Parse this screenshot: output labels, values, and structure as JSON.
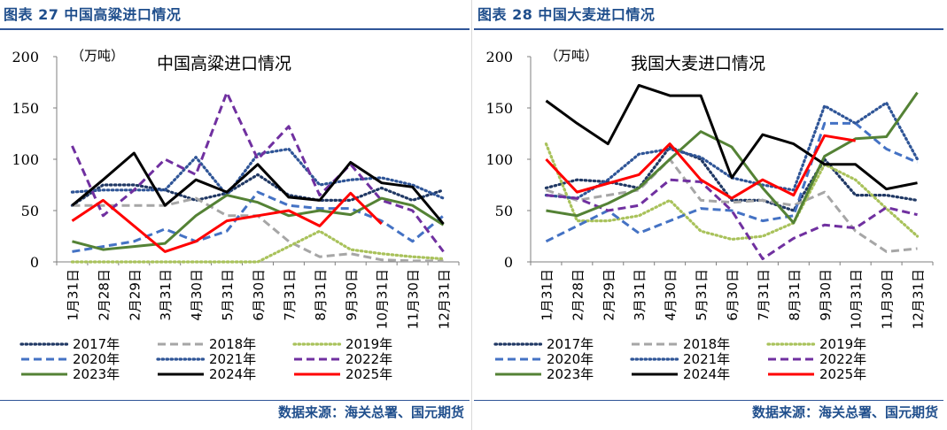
{
  "source_text": "数据来源：海关总署、国元期货",
  "months": [
    "1月31日",
    "2月28日",
    "2月29日",
    "3月31日",
    "4月30日",
    "5月31日",
    "6月30日",
    "7月31日",
    "8月31日",
    "9月30日",
    "10月31日",
    "11月30日",
    "12月31日"
  ],
  "series_styles": [
    {
      "name": "2017年",
      "color": "#203864",
      "dash": "dot"
    },
    {
      "name": "2018年",
      "color": "#a6a6a6",
      "dash": "dash"
    },
    {
      "name": "2019年",
      "color": "#a9c25b",
      "dash": "dot"
    },
    {
      "name": "2020年",
      "color": "#4472c4",
      "dash": "dash"
    },
    {
      "name": "2021年",
      "color": "#2f5597",
      "dash": "dot"
    },
    {
      "name": "2022年",
      "color": "#7030a0",
      "dash": "dash"
    },
    {
      "name": "2023年",
      "color": "#548235",
      "dash": "solid"
    },
    {
      "name": "2024年",
      "color": "#000000",
      "dash": "solid"
    },
    {
      "name": "2025年",
      "color": "#ff0000",
      "dash": "solid"
    }
  ],
  "panels": [
    {
      "figure_title": "图表 27  中国高粱进口情况",
      "chart_data": {
        "type": "line",
        "title": "中国高粱进口情况",
        "unit_label": "（万吨）",
        "ylim": [
          0,
          200
        ],
        "yticks": [
          0,
          50,
          100,
          150,
          200
        ],
        "categories": [
          "1月31日",
          "2月28日",
          "2月29日",
          "3月31日",
          "4月30日",
          "5月31日",
          "6月30日",
          "7月31日",
          "8月31日",
          "9月30日",
          "10月31日",
          "11月30日",
          "12月31日"
        ],
        "series": [
          {
            "name": "2017年",
            "values": [
              55,
              75,
              75,
              70,
              60,
              67,
              85,
              65,
              60,
              60,
              72,
              60,
              70
            ]
          },
          {
            "name": "2018年",
            "values": [
              55,
              55,
              55,
              55,
              62,
              45,
              45,
              20,
              5,
              8,
              2,
              1,
              1
            ]
          },
          {
            "name": "2019年",
            "values": [
              0,
              0,
              0,
              0,
              0,
              0,
              0,
              15,
              30,
              12,
              8,
              5,
              3
            ]
          },
          {
            "name": "2020年",
            "values": [
              10,
              15,
              20,
              32,
              20,
              30,
              68,
              55,
              52,
              52,
              40,
              20,
              45
            ]
          },
          {
            "name": "2021年",
            "values": [
              68,
              70,
              70,
              70,
              102,
              65,
              105,
              110,
              75,
              80,
              82,
              75,
              62
            ]
          },
          {
            "name": "2022年",
            "values": [
              113,
              45,
              70,
              100,
              85,
              165,
              100,
              132,
              65,
              95,
              60,
              50,
              10
            ]
          },
          {
            "name": "2023年",
            "values": [
              20,
              12,
              15,
              18,
              45,
              65,
              58,
              45,
              50,
              46,
              62,
              55,
              36
            ]
          },
          {
            "name": "2024年",
            "values": [
              55,
              80,
              106,
              55,
              80,
              68,
              95,
              63,
              60,
              97,
              77,
              73,
              37
            ]
          },
          {
            "name": "2025年",
            "values": [
              40,
              60,
              null,
              10,
              20,
              40,
              45,
              50,
              35,
              67,
              37,
              null,
              null
            ]
          }
        ]
      }
    },
    {
      "figure_title": "图表 28  中国大麦进口情况",
      "chart_data": {
        "type": "line",
        "title": "我国大麦进口情况",
        "unit_label": "（万吨）",
        "ylim": [
          0,
          200
        ],
        "yticks": [
          0,
          50,
          100,
          150,
          200
        ],
        "categories": [
          "1月31日",
          "2月28日",
          "2月29日",
          "3月31日",
          "4月30日",
          "5月31日",
          "6月30日",
          "7月31日",
          "8月31日",
          "9月30日",
          "10月31日",
          "11月30日",
          "12月31日"
        ],
        "series": [
          {
            "name": "2017年",
            "values": [
              72,
              80,
              78,
              72,
              112,
              100,
              60,
              60,
              50,
              100,
              65,
              65,
              60
            ]
          },
          {
            "name": "2018年",
            "values": [
              70,
              60,
              65,
              70,
              100,
              60,
              58,
              60,
              55,
              68,
              30,
              10,
              13
            ]
          },
          {
            "name": "2019年",
            "values": [
              115,
              40,
              40,
              45,
              60,
              30,
              22,
              25,
              38,
              95,
              80,
              52,
              25
            ]
          },
          {
            "name": "2020年",
            "values": [
              20,
              35,
              50,
              28,
              40,
              52,
              50,
              40,
              45,
              135,
              135,
              110,
              97
            ]
          },
          {
            "name": "2021年",
            "values": [
              65,
              62,
              80,
              105,
              110,
              102,
              82,
              75,
              70,
              152,
              135,
              155,
              100
            ]
          },
          {
            "name": "2022年",
            "values": [
              65,
              62,
              50,
              55,
              80,
              78,
              50,
              3,
              23,
              36,
              33,
              53,
              46
            ]
          },
          {
            "name": "2023年",
            "values": [
              50,
              45,
              57,
              72,
              100,
              127,
              112,
              72,
              38,
              103,
              120,
              122,
              165
            ]
          },
          {
            "name": "2024年",
            "values": [
              157,
              135,
              115,
              172,
              162,
              162,
              82,
              124,
              115,
              95,
              95,
              71,
              77
            ]
          },
          {
            "name": "2025年",
            "values": [
              100,
              68,
              null,
              85,
              115,
              80,
              62,
              80,
              65,
              123,
              118,
              null,
              null
            ]
          }
        ]
      }
    }
  ]
}
